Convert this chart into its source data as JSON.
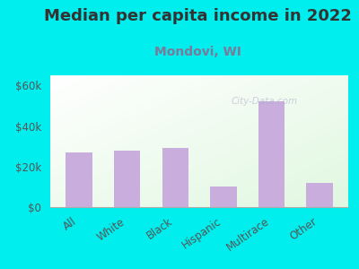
{
  "title": "Median per capita income in 2022",
  "subtitle": "Mondovi, WI",
  "categories": [
    "All",
    "White",
    "Black",
    "Hispanic",
    "Multirace",
    "Other"
  ],
  "values": [
    27000,
    28000,
    29000,
    10000,
    52000,
    12000
  ],
  "bar_color": "#c9aedd",
  "background_color": "#00EEEE",
  "title_color": "#333333",
  "subtitle_color": "#7a7a9a",
  "tick_color": "#555555",
  "ylim": [
    0,
    65000
  ],
  "yticks": [
    0,
    20000,
    40000,
    60000
  ],
  "ytick_labels": [
    "$0",
    "$20k",
    "$40k",
    "$60k"
  ],
  "watermark": "City-Data.com",
  "title_fontsize": 13,
  "subtitle_fontsize": 10,
  "tick_fontsize": 8.5
}
